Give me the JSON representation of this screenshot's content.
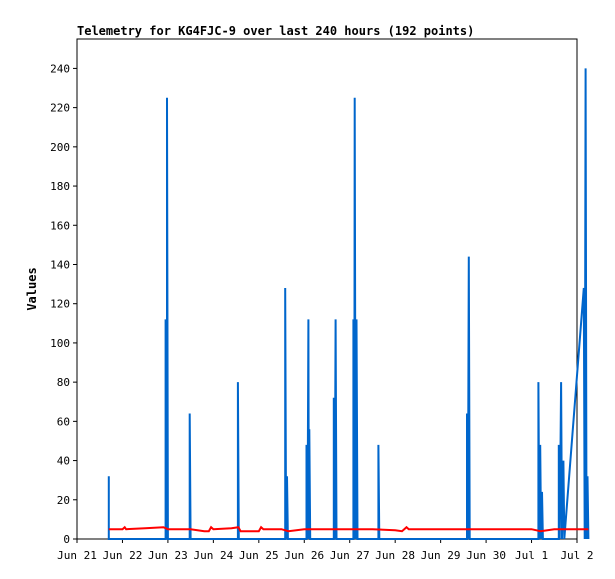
{
  "chart_data": {
    "type": "line",
    "title": "Telemetry for KG4FJC-9 over last 240 hours (192 points)",
    "xlabel": "",
    "ylabel": "Values",
    "x_ticks": [
      "Jun 21",
      "Jun 22",
      "Jun 23",
      "Jun 24",
      "Jun 25",
      "Jun 26",
      "Jun 27",
      "Jun 28",
      "Jun 29",
      "Jun 30",
      "Jul 1",
      "Jul 2"
    ],
    "y_ticks": [
      0,
      20,
      40,
      60,
      80,
      100,
      120,
      140,
      160,
      180,
      200,
      220,
      240
    ],
    "xlim": [
      0,
      11
    ],
    "ylim": [
      0,
      255
    ],
    "grid": false,
    "legend": "none",
    "x_unit": "days since Jun 21",
    "series": [
      {
        "color": "#0066cc",
        "points": [
          [
            0.7,
            0
          ],
          [
            0.7,
            32
          ],
          [
            0.7,
            0
          ],
          [
            1.95,
            0
          ],
          [
            1.95,
            112
          ],
          [
            1.98,
            0
          ],
          [
            1.98,
            225
          ],
          [
            2.0,
            0
          ],
          [
            2.48,
            0
          ],
          [
            2.48,
            64
          ],
          [
            2.5,
            0
          ],
          [
            3.54,
            0
          ],
          [
            3.54,
            80
          ],
          [
            3.56,
            0
          ],
          [
            4.58,
            0
          ],
          [
            4.58,
            128
          ],
          [
            4.6,
            0
          ],
          [
            4.62,
            32
          ],
          [
            4.64,
            0
          ],
          [
            5.05,
            0
          ],
          [
            5.05,
            48
          ],
          [
            5.07,
            0
          ],
          [
            5.09,
            112
          ],
          [
            5.1,
            0
          ],
          [
            5.11,
            56
          ],
          [
            5.13,
            0
          ],
          [
            5.65,
            0
          ],
          [
            5.65,
            72
          ],
          [
            5.67,
            0
          ],
          [
            5.69,
            112
          ],
          [
            5.71,
            0
          ],
          [
            6.08,
            0
          ],
          [
            6.08,
            112
          ],
          [
            6.1,
            0
          ],
          [
            6.11,
            225
          ],
          [
            6.13,
            0
          ],
          [
            6.15,
            112
          ],
          [
            6.17,
            0
          ],
          [
            6.63,
            0
          ],
          [
            6.63,
            48
          ],
          [
            6.65,
            0
          ],
          [
            8.58,
            0
          ],
          [
            8.58,
            64
          ],
          [
            8.6,
            0
          ],
          [
            8.62,
            144
          ],
          [
            8.64,
            0
          ],
          [
            10.15,
            0
          ],
          [
            10.15,
            80
          ],
          [
            10.17,
            0
          ],
          [
            10.19,
            48
          ],
          [
            10.21,
            0
          ],
          [
            10.23,
            24
          ],
          [
            10.25,
            0
          ],
          [
            10.6,
            0
          ],
          [
            10.6,
            48
          ],
          [
            10.62,
            0
          ],
          [
            10.65,
            80
          ],
          [
            10.67,
            0
          ],
          [
            10.7,
            40
          ],
          [
            10.72,
            0
          ],
          [
            11.15,
            128
          ],
          [
            11.17,
            0
          ],
          [
            11.19,
            240
          ],
          [
            11.21,
            0
          ],
          [
            11.23,
            32
          ],
          [
            11.25,
            0
          ]
        ]
      },
      {
        "color": "#ff0000",
        "points": [
          [
            0.7,
            5
          ],
          [
            1.0,
            5
          ],
          [
            1.05,
            6
          ],
          [
            1.08,
            5
          ],
          [
            1.5,
            5.5
          ],
          [
            1.9,
            6
          ],
          [
            2.0,
            5
          ],
          [
            2.5,
            5
          ],
          [
            2.8,
            4
          ],
          [
            2.9,
            4
          ],
          [
            2.95,
            6
          ],
          [
            3.0,
            5
          ],
          [
            3.4,
            5.5
          ],
          [
            3.55,
            6
          ],
          [
            3.6,
            4
          ],
          [
            4.0,
            4
          ],
          [
            4.05,
            6
          ],
          [
            4.1,
            5
          ],
          [
            4.5,
            5
          ],
          [
            4.65,
            4
          ],
          [
            5.0,
            5
          ],
          [
            5.5,
            5
          ],
          [
            6.0,
            5
          ],
          [
            6.5,
            5
          ],
          [
            7.0,
            4.5
          ],
          [
            7.15,
            4
          ],
          [
            7.25,
            6
          ],
          [
            7.3,
            5
          ],
          [
            8.0,
            5
          ],
          [
            8.5,
            5
          ],
          [
            9.0,
            5
          ],
          [
            9.5,
            5
          ],
          [
            10.0,
            5
          ],
          [
            10.2,
            4
          ],
          [
            10.5,
            5
          ],
          [
            10.75,
            5
          ],
          [
            11.0,
            5
          ],
          [
            11.25,
            5
          ]
        ]
      }
    ]
  }
}
